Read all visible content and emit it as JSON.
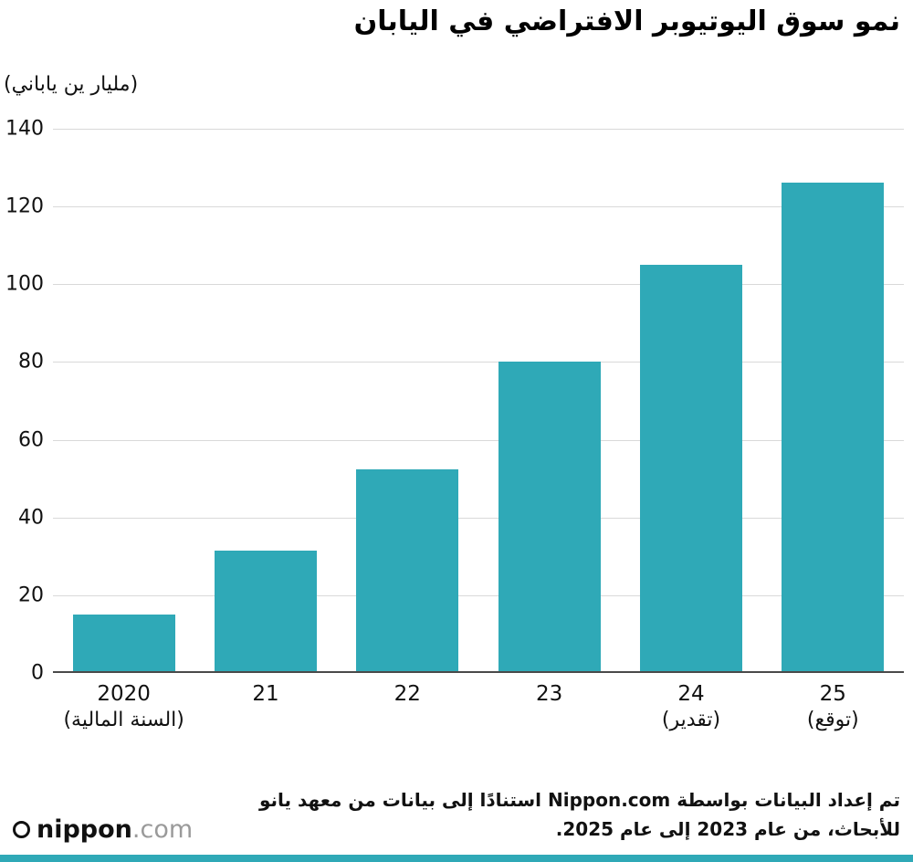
{
  "title": "نمو سوق اليوتيوبر الافتراضي في اليابان",
  "unit_label": "(مليار ين ياباني)",
  "chart_data": {
    "type": "bar",
    "title": "نمو سوق اليوتيوبر الافتراضي في اليابان",
    "ylabel": "(مليار ين ياباني)",
    "xlabel": "",
    "categories": [
      "2020",
      "21",
      "22",
      "23",
      "24",
      "25"
    ],
    "category_sublabels": [
      "(السنة المالية)",
      "",
      "",
      "",
      "(تقدير)",
      "(توقع)"
    ],
    "values": [
      14.5,
      31,
      52,
      80,
      105,
      126
    ],
    "ylim": [
      0,
      140
    ],
    "ytick_step": 20,
    "grid": true,
    "legend": "none",
    "bar_color": "#2fa9b7"
  },
  "footer": {
    "note_line1": "تم إعداد البيانات بواسطة Nippon.com استنادًا إلى بيانات من معهد يانو",
    "note_line2": "للأبحاث، من عام 2023 إلى عام 2025.",
    "logo_main": "nippon",
    "logo_suffix": ".com"
  },
  "colors": {
    "bar": "#2fa9b7",
    "gridline": "#d9d9d9",
    "axis": "#4a4a4a",
    "strip": "#2fa9b7"
  }
}
